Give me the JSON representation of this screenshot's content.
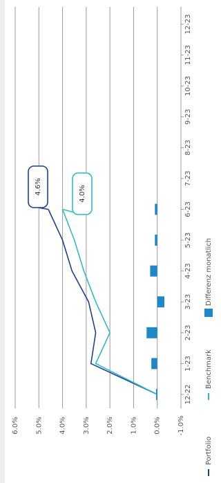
{
  "chart_data": {
    "type": "line",
    "categories": [
      "12-22",
      "1-23",
      "2-23",
      "3-23",
      "4-23",
      "5-23",
      "6-23",
      "7-23",
      "8-23",
      "9-23",
      "10-23",
      "11-23",
      "12-23"
    ],
    "series": [
      {
        "name": "Portfolio",
        "color": "#1f3f8f",
        "values": [
          0,
          2.8,
          2.6,
          2.9,
          3.6,
          4.0,
          4.6,
          null,
          null,
          null,
          null,
          null,
          null
        ]
      },
      {
        "name": "Benchmark",
        "color": "#2bbcc4",
        "values": [
          0,
          2.6,
          2.0,
          2.6,
          3.1,
          3.5,
          4.0,
          null,
          null,
          null,
          null,
          null,
          null
        ]
      },
      {
        "name": "Differenz monatlich",
        "type": "bar",
        "color": "#1f88c9",
        "values": [
          0.05,
          0.25,
          0.45,
          -0.3,
          0.3,
          0.1,
          0.1,
          null,
          null,
          null,
          null,
          null,
          null
        ]
      }
    ],
    "annotations": [
      {
        "text": "4.6%"
      },
      {
        "text": "4.0%"
      }
    ],
    "ylim": [
      -1,
      6
    ],
    "yticks": [
      {
        "value": -1,
        "label": "-1.0%"
      },
      {
        "value": 0,
        "label": "0.0%"
      },
      {
        "value": 1,
        "label": "1.0%"
      },
      {
        "value": 2,
        "label": "2.0%"
      },
      {
        "value": 3,
        "label": "3.0%"
      },
      {
        "value": 4,
        "label": "4.0%"
      },
      {
        "value": 5,
        "label": "5.0%"
      },
      {
        "value": 6,
        "label": "6.0%"
      }
    ],
    "grid": true
  }
}
